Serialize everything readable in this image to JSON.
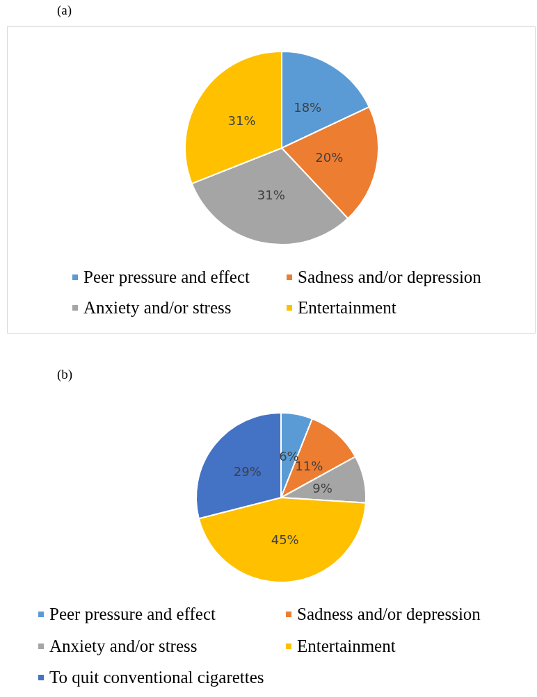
{
  "chart_data": [
    {
      "type": "pie",
      "title": "(a)",
      "categories": [
        "Peer pressure and effect",
        "Sadness and/or depression",
        "Anxiety and/or stress",
        "Entertainment"
      ],
      "values": [
        18,
        20,
        31,
        31
      ],
      "colors": [
        "#5b9bd5",
        "#ed7d31",
        "#a5a5a5",
        "#ffc000"
      ],
      "value_labels": [
        "18%",
        "20%",
        "31%",
        "31%"
      ],
      "legend": "bottom"
    },
    {
      "type": "pie",
      "title": "(b)",
      "categories": [
        "Peer pressure and effect",
        "Sadness and/or depression",
        "Anxiety and/or stress",
        "Entertainment",
        "To quit conventional cigarettes"
      ],
      "values": [
        6,
        11,
        9,
        45,
        29
      ],
      "colors": [
        "#5b9bd5",
        "#ed7d31",
        "#a5a5a5",
        "#ffc000",
        "#4472c4"
      ],
      "value_labels": [
        "6%",
        "11%",
        "9%",
        "45%",
        "29%"
      ],
      "legend": "bottom"
    }
  ]
}
